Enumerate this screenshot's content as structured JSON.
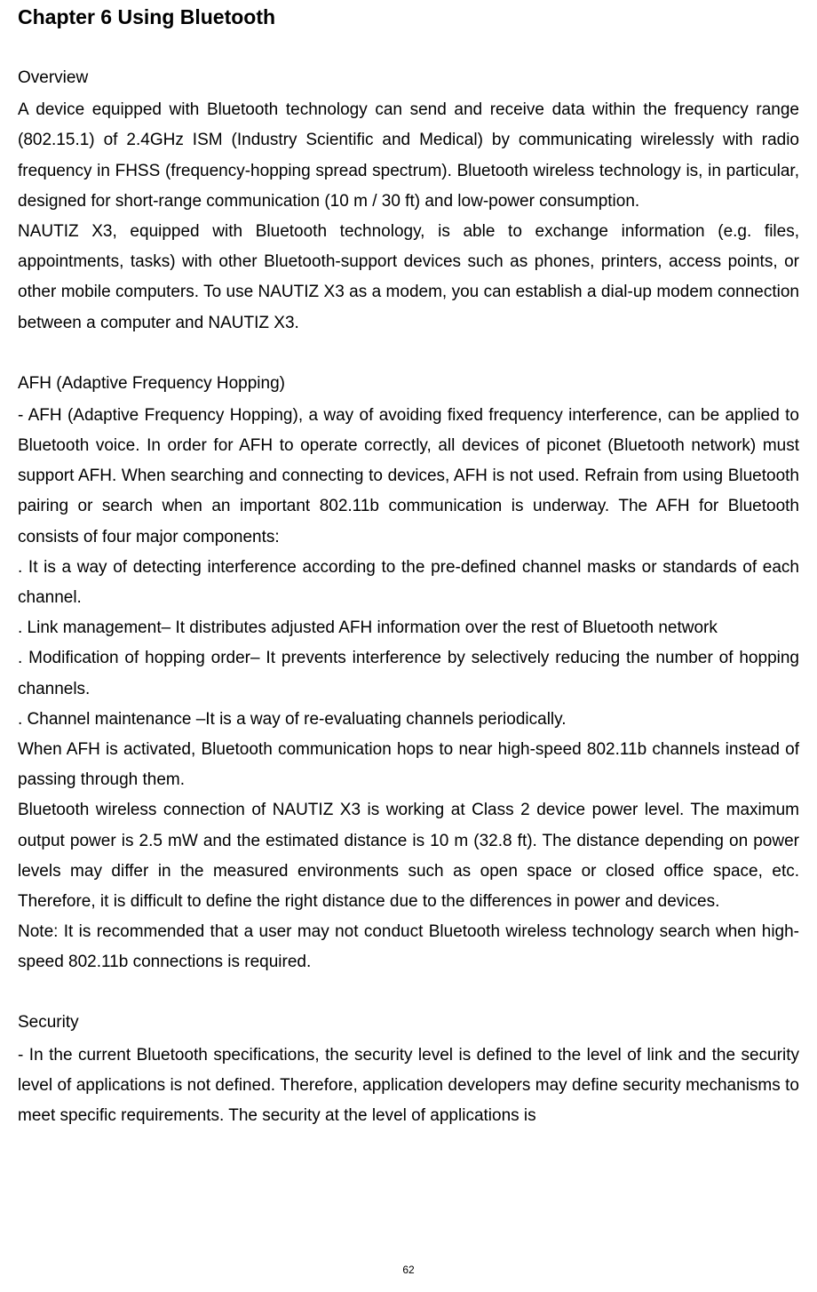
{
  "chapter": {
    "title": "Chapter 6 Using Bluetooth"
  },
  "sections": {
    "overview": {
      "heading": "Overview",
      "paragraph1": "A device equipped with Bluetooth technology can send and receive data within the frequency range (802.15.1) of 2.4GHz ISM (Industry Scientific and Medical) by communicating wirelessly with radio frequency in FHSS (frequency-hopping spread spectrum). Bluetooth wireless technology is, in particular, designed for short-range communication (10 m / 30 ft) and low-power consumption.",
      "paragraph2": "NAUTIZ X3, equipped with Bluetooth technology, is able to exchange information (e.g. files, appointments, tasks) with other Bluetooth-support devices such as phones, printers, access points, or other mobile computers. To use NAUTIZ X3 as a modem, you can establish a dial-up modem connection between a computer and NAUTIZ X3."
    },
    "afh": {
      "heading": "AFH (Adaptive Frequency Hopping)",
      "paragraph1": "- AFH (Adaptive Frequency Hopping), a way of avoiding fixed frequency interference, can be applied to Bluetooth voice. In order for AFH to operate correctly, all devices of piconet (Bluetooth network) must support AFH.   When searching and connecting to devices, AFH is not used. Refrain from using Bluetooth pairing or search when an important 802.11b communication is underway. The AFH for Bluetooth consists of four major components:",
      "item1": ". It is a way of detecting interference according to the pre-defined channel masks or standards of each channel.",
      "item2": ".   Link management– It distributes adjusted AFH information over the rest of Bluetooth network",
      "item3": ". Modification of hopping order– It prevents interference by selectively reducing the number of hopping channels.",
      "item4": ". Channel maintenance –It is a way of re-evaluating channels periodically.",
      "paragraph2": "When AFH is activated, Bluetooth communication hops to near high-speed 802.11b channels instead of passing through them.",
      "paragraph3": "Bluetooth wireless connection of NAUTIZ X3 is working at Class 2 device power level. The maximum output power is 2.5 mW and the estimated distance is 10 m (32.8 ft). The distance depending on power levels may differ in the measured environments such as open space or closed office space, etc. Therefore, it is difficult to define the right distance due to the differences in power and devices.",
      "note": "Note: It is recommended that a user may not conduct Bluetooth wireless technology search when high-speed 802.11b connections is required."
    },
    "security": {
      "heading": "Security",
      "paragraph1": "- In the current Bluetooth specifications, the security level is defined to the level of link and the security level of applications is not defined. Therefore, application developers may define security mechanisms to meet specific requirements. The security at the level of applications is"
    }
  },
  "page_number": "62"
}
